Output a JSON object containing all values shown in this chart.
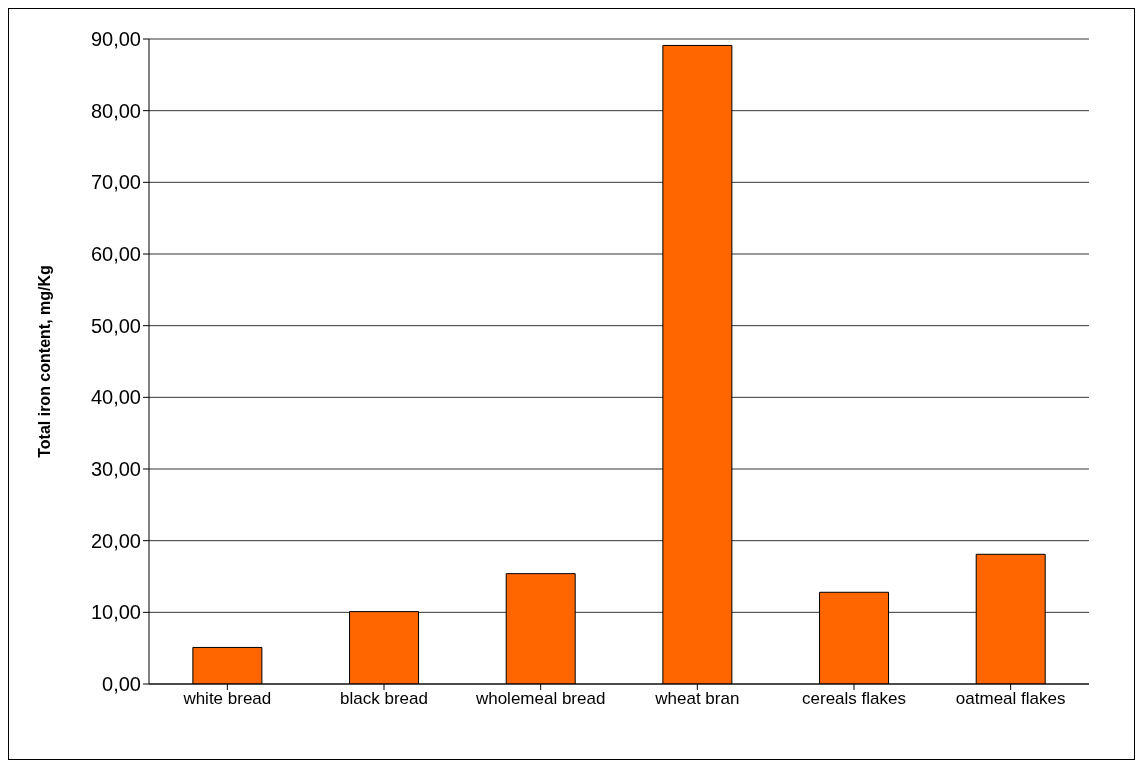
{
  "chart_data": {
    "type": "bar",
    "ylabel": "Total iron content, mg/Kg",
    "categories": [
      "white bread",
      "black bread",
      "wholemeal bread",
      "wheat bran",
      "cereals flakes",
      "oatmeal flakes"
    ],
    "values": [
      5.1,
      10.1,
      15.4,
      89.1,
      12.8,
      18.1
    ],
    "color": "#ff6600",
    "ylim": [
      0,
      90
    ],
    "yticks": [
      {
        "value": 0,
        "label": "0,00"
      },
      {
        "value": 10,
        "label": "10,00"
      },
      {
        "value": 20,
        "label": "20,00"
      },
      {
        "value": 30,
        "label": "30,00"
      },
      {
        "value": 40,
        "label": "40,00"
      },
      {
        "value": 50,
        "label": "50,00"
      },
      {
        "value": 60,
        "label": "60,00"
      },
      {
        "value": 70,
        "label": "70,00"
      },
      {
        "value": 80,
        "label": "80,00"
      },
      {
        "value": 90,
        "label": "90,00"
      }
    ],
    "grid": "y"
  }
}
